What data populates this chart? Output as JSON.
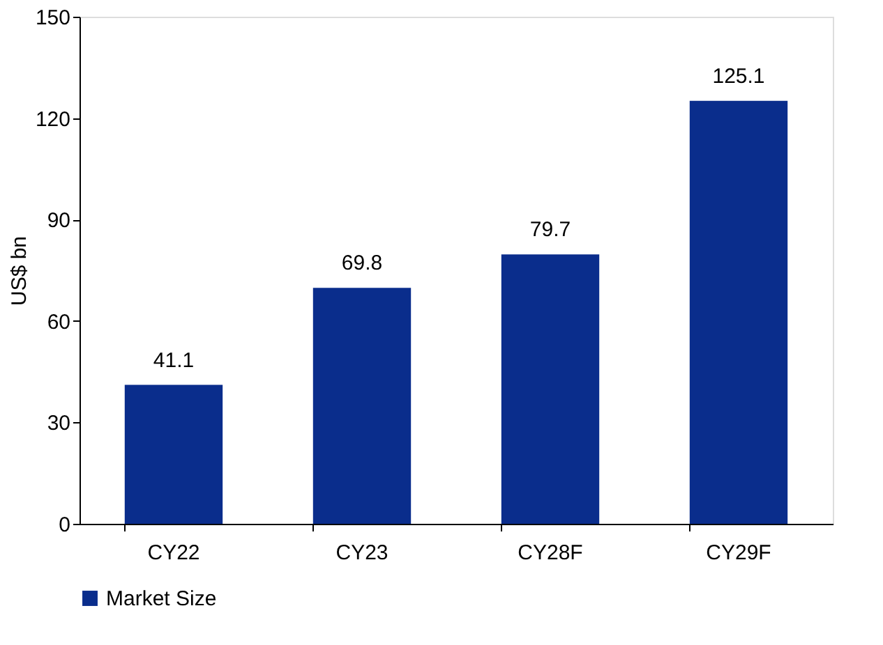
{
  "chart_data": {
    "type": "bar",
    "ylabel": "US$ bn",
    "categories": [
      "CY22",
      "CY23",
      "CY28F",
      "CY29F"
    ],
    "series": [
      {
        "name": "Market Size",
        "color": "#0a2d8c",
        "values": [
          41.1,
          69.8,
          79.7,
          125.1
        ]
      }
    ],
    "ylim": [
      0,
      150
    ],
    "yticks": [
      0,
      30,
      60,
      90,
      120,
      150
    ],
    "data_labels": true,
    "grid": false,
    "legend": "bottom"
  }
}
